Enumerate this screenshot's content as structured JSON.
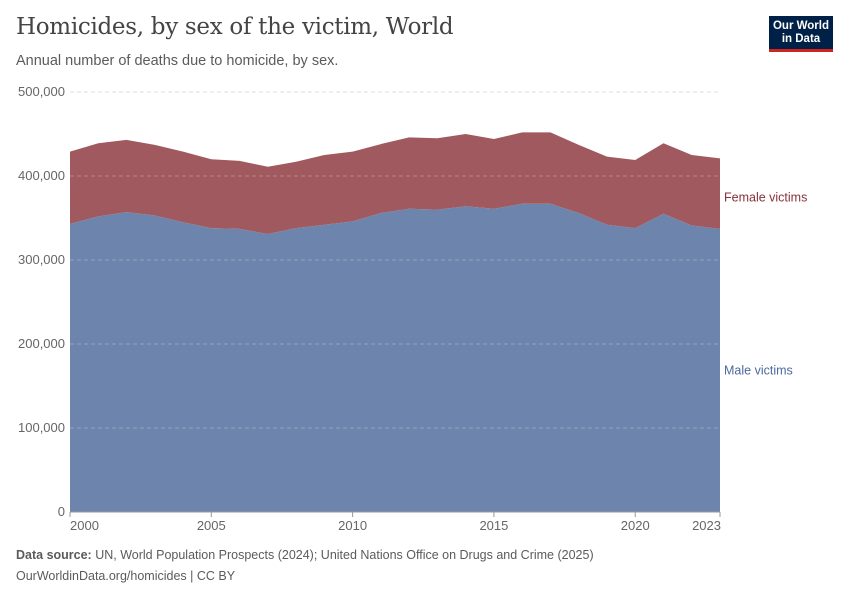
{
  "title": "Homicides, by sex of the victim, World",
  "subtitle": "Annual number of deaths due to homicide, by sex.",
  "logo": {
    "line1": "Our World",
    "line2": "in Data"
  },
  "footer": {
    "source_label": "Data source:",
    "source_text": "UN, World Population Prospects (2024); United Nations Office on Drugs and Crime (2025)",
    "url": "OurWorldinData.org/homicides | CC BY"
  },
  "chart_data": {
    "type": "area",
    "stacked": true,
    "x": [
      2000,
      2001,
      2002,
      2003,
      2004,
      2005,
      2006,
      2007,
      2008,
      2009,
      2010,
      2011,
      2012,
      2013,
      2014,
      2015,
      2016,
      2017,
      2018,
      2019,
      2020,
      2021,
      2022,
      2023
    ],
    "series": [
      {
        "name": "Male victims",
        "color": "#6d85ac",
        "values": [
          343000,
          352000,
          357000,
          353000,
          345000,
          338000,
          337000,
          331000,
          338000,
          342000,
          346000,
          356000,
          361000,
          360000,
          364000,
          361000,
          367000,
          367000,
          356000,
          342000,
          338000,
          355000,
          341000,
          337000
        ]
      },
      {
        "name": "Female victims",
        "color": "#a0595f",
        "values": [
          86000,
          87000,
          86000,
          84000,
          84000,
          82000,
          81000,
          80000,
          79000,
          83000,
          83000,
          82000,
          85000,
          85000,
          86000,
          83000,
          85000,
          85000,
          81000,
          81000,
          81000,
          84000,
          84000,
          84000
        ]
      }
    ],
    "ylim": [
      0,
      500000
    ],
    "yticks": [
      "0",
      "100,000",
      "200,000",
      "300,000",
      "400,000",
      "500,000"
    ],
    "yticks_values": [
      0,
      100000,
      200000,
      300000,
      400000,
      500000
    ],
    "xticks": [
      "2000",
      "2005",
      "2010",
      "2015",
      "2020",
      "2023"
    ],
    "xticks_values": [
      2000,
      2005,
      2010,
      2015,
      2020,
      2023
    ],
    "grid": "horizontal dashed",
    "legend": "right, inline labels"
  }
}
